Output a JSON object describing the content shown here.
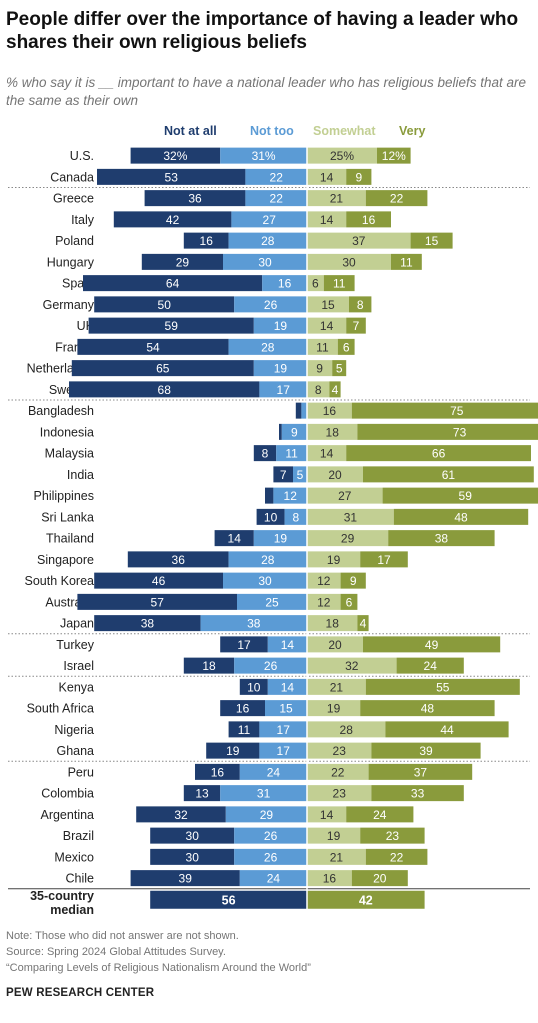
{
  "title": "People differ over the importance of having a leader who shares their own religious beliefs",
  "subtitle": "% who say it is __ important to have a national leader who has religious beliefs that are the same as their own",
  "legend": [
    {
      "label": "Not at all",
      "color": "#1f3d6e"
    },
    {
      "label": "Not too",
      "color": "#5b9bd5"
    },
    {
      "label": "Somewhat",
      "color": "#c2cf93"
    },
    {
      "label": "Very",
      "color": "#8a9b3c"
    }
  ],
  "chart_data": {
    "type": "bar",
    "orientation": "horizontal",
    "diverging": true,
    "categories": [
      "U.S.",
      "Canada",
      "Greece",
      "Italy",
      "Poland",
      "Hungary",
      "Spain",
      "Germany",
      "UK",
      "France",
      "Netherlands",
      "Sweden",
      "Bangladesh",
      "Indonesia",
      "Malaysia",
      "India",
      "Philippines",
      "Sri Lanka",
      "Thailand",
      "Singapore",
      "South Korea",
      "Australia",
      "Japan",
      "Turkey",
      "Israel",
      "Kenya",
      "South Africa",
      "Nigeria",
      "Ghana",
      "Peru",
      "Colombia",
      "Argentina",
      "Brazil",
      "Mexico",
      "Chile"
    ],
    "group_breaks_after": [
      "Canada",
      "Sweden",
      "Japan",
      "Israel",
      "Ghana"
    ],
    "series": [
      {
        "name": "Not at all",
        "side": "left",
        "values": [
          32,
          53,
          36,
          42,
          16,
          29,
          64,
          50,
          59,
          54,
          65,
          68,
          2,
          1,
          8,
          7,
          3,
          10,
          14,
          36,
          46,
          57,
          38,
          17,
          18,
          10,
          16,
          11,
          19,
          16,
          13,
          32,
          30,
          30,
          39
        ]
      },
      {
        "name": "Not too",
        "side": "left",
        "values": [
          31,
          22,
          22,
          27,
          28,
          30,
          16,
          26,
          19,
          28,
          19,
          17,
          2,
          9,
          11,
          5,
          12,
          8,
          19,
          28,
          30,
          25,
          38,
          14,
          26,
          14,
          15,
          17,
          17,
          24,
          31,
          29,
          26,
          26,
          24
        ]
      },
      {
        "name": "Somewhat",
        "side": "right",
        "values": [
          25,
          14,
          21,
          14,
          37,
          30,
          6,
          15,
          14,
          11,
          9,
          8,
          16,
          18,
          14,
          20,
          27,
          31,
          29,
          19,
          12,
          12,
          18,
          20,
          32,
          21,
          19,
          28,
          23,
          22,
          23,
          14,
          19,
          21,
          16
        ]
      },
      {
        "name": "Very",
        "side": "right",
        "values": [
          12,
          9,
          22,
          16,
          15,
          11,
          11,
          8,
          7,
          6,
          5,
          4,
          75,
          73,
          66,
          61,
          59,
          48,
          38,
          17,
          9,
          6,
          4,
          49,
          24,
          55,
          48,
          44,
          39,
          37,
          33,
          24,
          23,
          22,
          20
        ]
      }
    ],
    "value_suffix_first_row": "%",
    "hide_labels_below": 4,
    "median": {
      "label": "35-country median",
      "negative_total": 56,
      "positive_total": 42
    },
    "grid": false
  },
  "notes": [
    "Note: Those who did not answer are not shown.",
    "Source: Spring 2024 Global Attitudes Survey.",
    "“Comparing Levels of Religious Nationalism Around the World”"
  ],
  "brand": "PEW RESEARCH CENTER"
}
